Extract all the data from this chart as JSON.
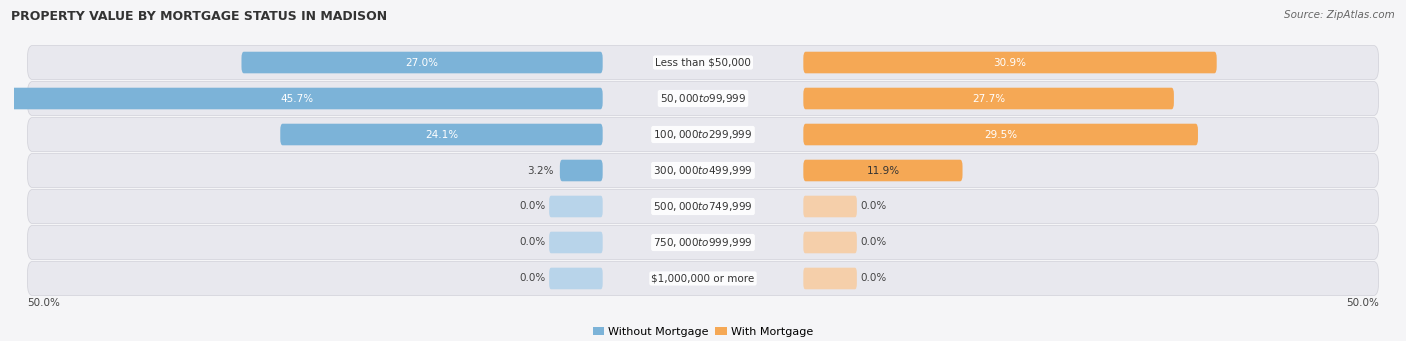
{
  "title": "PROPERTY VALUE BY MORTGAGE STATUS IN MADISON",
  "source": "Source: ZipAtlas.com",
  "categories": [
    "Less than $50,000",
    "$50,000 to $99,999",
    "$100,000 to $299,999",
    "$300,000 to $499,999",
    "$500,000 to $749,999",
    "$750,000 to $999,999",
    "$1,000,000 or more"
  ],
  "without_mortgage": [
    27.0,
    45.7,
    24.1,
    3.2,
    0.0,
    0.0,
    0.0
  ],
  "with_mortgage": [
    30.9,
    27.7,
    29.5,
    11.9,
    0.0,
    0.0,
    0.0
  ],
  "color_without": "#7cb3d8",
  "color_with": "#f5a855",
  "color_without_zero": "#b8d4ea",
  "color_with_zero": "#f5cfaa",
  "xlim": 50.0,
  "bg_row_color": "#e8e8ee",
  "bg_row_edge": "#d0d0d8",
  "fig_bg": "#f5f5f7",
  "title_fontsize": 9,
  "source_fontsize": 7.5,
  "label_fontsize": 7.5,
  "cat_fontsize": 7.5,
  "legend_fontsize": 8
}
